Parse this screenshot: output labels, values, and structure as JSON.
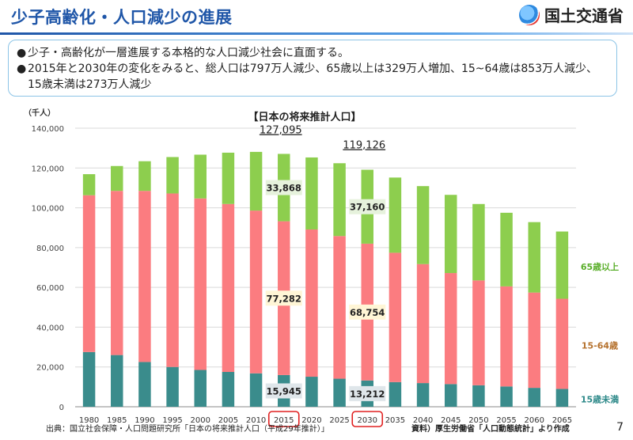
{
  "header": {
    "title": "少子高齢化・人口減少の進展",
    "logo_text": "国土交通省"
  },
  "summary": {
    "bullet1": "少子・高齢化が一層進展する本格的な人口減少社会に直面する。",
    "bullet2": "2015年と2030年の変化をみると、総人口は797万人減少、65歳以上は329万人増加、15~64歳は853万人減少、15歳未満は273万人減少"
  },
  "footer": {
    "source_left": "出典：国立社会保障・人口問題研究所「日本の将来推計人口（平成29年推計）」",
    "source_right": "資料）厚生労働省「人口動態統計」より作成",
    "page": "7"
  },
  "colors": {
    "under15": "#3a8c8c",
    "age15_64": "#fb7c80",
    "over65": "#8dce4e",
    "highlight": "#e02020"
  },
  "chart_data": {
    "type": "bar",
    "stacked": true,
    "title": "【日本の将来推計人口】",
    "ylabel": "（千人）",
    "ylim": [
      0,
      140000
    ],
    "yticks": [
      "0",
      "20,000",
      "40,000",
      "60,000",
      "80,000",
      "100,000",
      "120,000",
      "140,000"
    ],
    "grid": true,
    "categories": [
      "1980",
      "1985",
      "1990",
      "1995",
      "2000",
      "2005",
      "2010",
      "2015",
      "2020",
      "2025",
      "2030",
      "2035",
      "2040",
      "2045",
      "2050",
      "2055",
      "2060",
      "2065"
    ],
    "highlight_categories": [
      "2015",
      "2030"
    ],
    "series": [
      {
        "name": "15歳未満",
        "values": [
          27500,
          26000,
          22500,
          20000,
          18500,
          17500,
          16800,
          15945,
          15100,
          14100,
          13212,
          12400,
          11900,
          11400,
          10800,
          10200,
          9500,
          8980
        ]
      },
      {
        "name": "15-64歳",
        "values": [
          78800,
          82500,
          86000,
          87200,
          86200,
          84400,
          81800,
          77282,
          74000,
          71700,
          68754,
          65000,
          59800,
          55800,
          52700,
          50300,
          47900,
          45300
        ]
      },
      {
        "name": "65歳以上",
        "values": [
          10600,
          12500,
          14900,
          18300,
          22000,
          25800,
          29500,
          33868,
          36200,
          36600,
          37160,
          37800,
          39200,
          39300,
          38400,
          37000,
          35400,
          33800
        ]
      }
    ],
    "annotations": [
      {
        "category": "2015",
        "label": "127,095",
        "kind": "total"
      },
      {
        "category": "2030",
        "label": "119,126",
        "kind": "total"
      },
      {
        "category": "2015",
        "label": "33,868",
        "series": "65歳以上"
      },
      {
        "category": "2015",
        "label": "77,282",
        "series": "15-64歳"
      },
      {
        "category": "2015",
        "label": "15,945",
        "series": "15歳未満"
      },
      {
        "category": "2030",
        "label": "37,160",
        "series": "65歳以上"
      },
      {
        "category": "2030",
        "label": "68,754",
        "series": "15-64歳"
      },
      {
        "category": "2030",
        "label": "13,212",
        "series": "15歳未満"
      }
    ],
    "legend_position": "right"
  }
}
